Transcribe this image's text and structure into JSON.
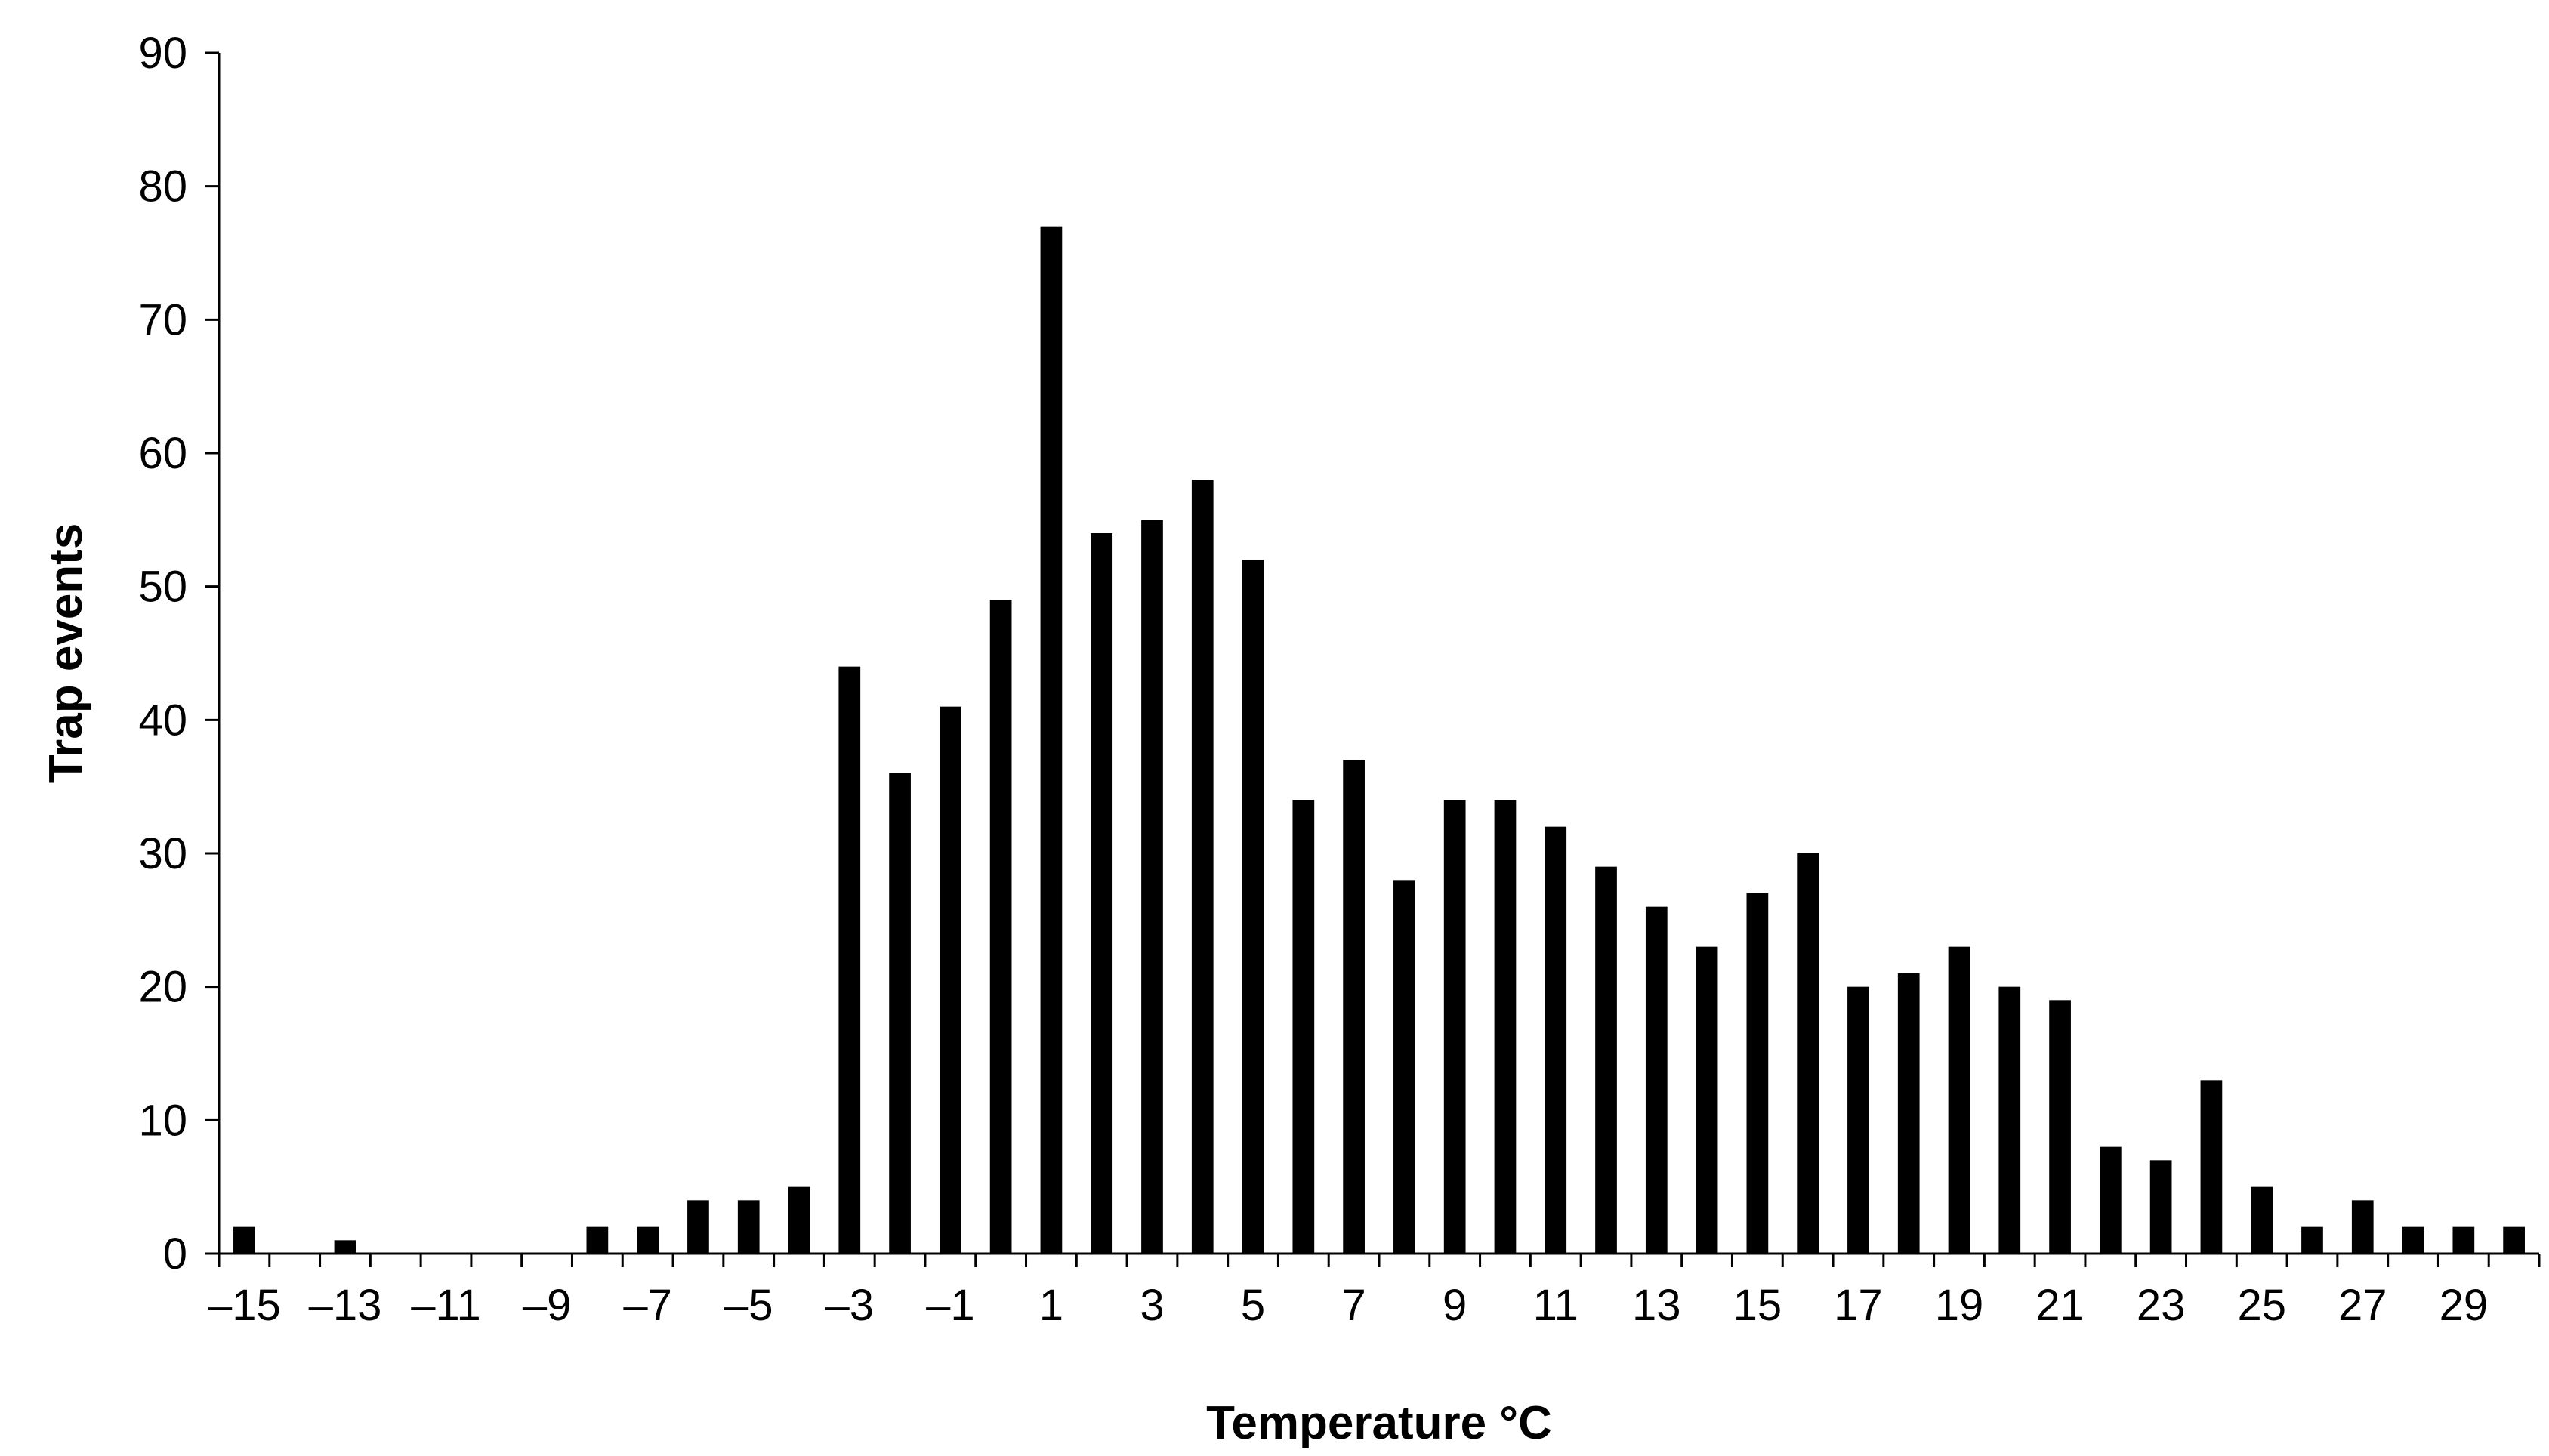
{
  "chart_data": {
    "type": "bar",
    "title": "",
    "xlabel": "Temperature °C",
    "ylabel": "Trap events",
    "ylim": [
      0,
      90
    ],
    "yticks": [
      0,
      10,
      20,
      30,
      40,
      50,
      60,
      70,
      80,
      90
    ],
    "grid": false,
    "legend": "none",
    "bar_color": "#000000",
    "categories": [
      -15,
      -14,
      -13,
      -12,
      -11,
      -10,
      -9,
      -8,
      -7,
      -6,
      -5,
      -4,
      -3,
      -2,
      -1,
      0,
      1,
      2,
      3,
      4,
      5,
      6,
      7,
      8,
      9,
      10,
      11,
      12,
      13,
      14,
      15,
      16,
      17,
      18,
      19,
      20,
      21,
      22,
      23,
      24,
      25,
      26,
      27,
      28,
      29,
      30
    ],
    "x_tick_labels": [
      "–15",
      "",
      "–13",
      "",
      "–11",
      "",
      "–9",
      "",
      "–7",
      "",
      "–5",
      "",
      "–3",
      "",
      "–1",
      "",
      "1",
      "",
      "3",
      "",
      "5",
      "",
      "7",
      "",
      "9",
      "",
      "11",
      "",
      "13",
      "",
      "15",
      "",
      "17",
      "",
      "19",
      "",
      "21",
      "",
      "23",
      "",
      "25",
      "",
      "27",
      "",
      "29",
      ""
    ],
    "values": [
      2,
      0,
      1,
      0,
      0,
      0,
      0,
      2,
      2,
      4,
      4,
      5,
      44,
      36,
      41,
      49,
      77,
      54,
      55,
      58,
      52,
      34,
      37,
      28,
      34,
      34,
      32,
      29,
      26,
      23,
      27,
      30,
      20,
      21,
      23,
      20,
      19,
      8,
      7,
      13,
      5,
      2,
      4,
      2,
      2,
      2
    ]
  }
}
